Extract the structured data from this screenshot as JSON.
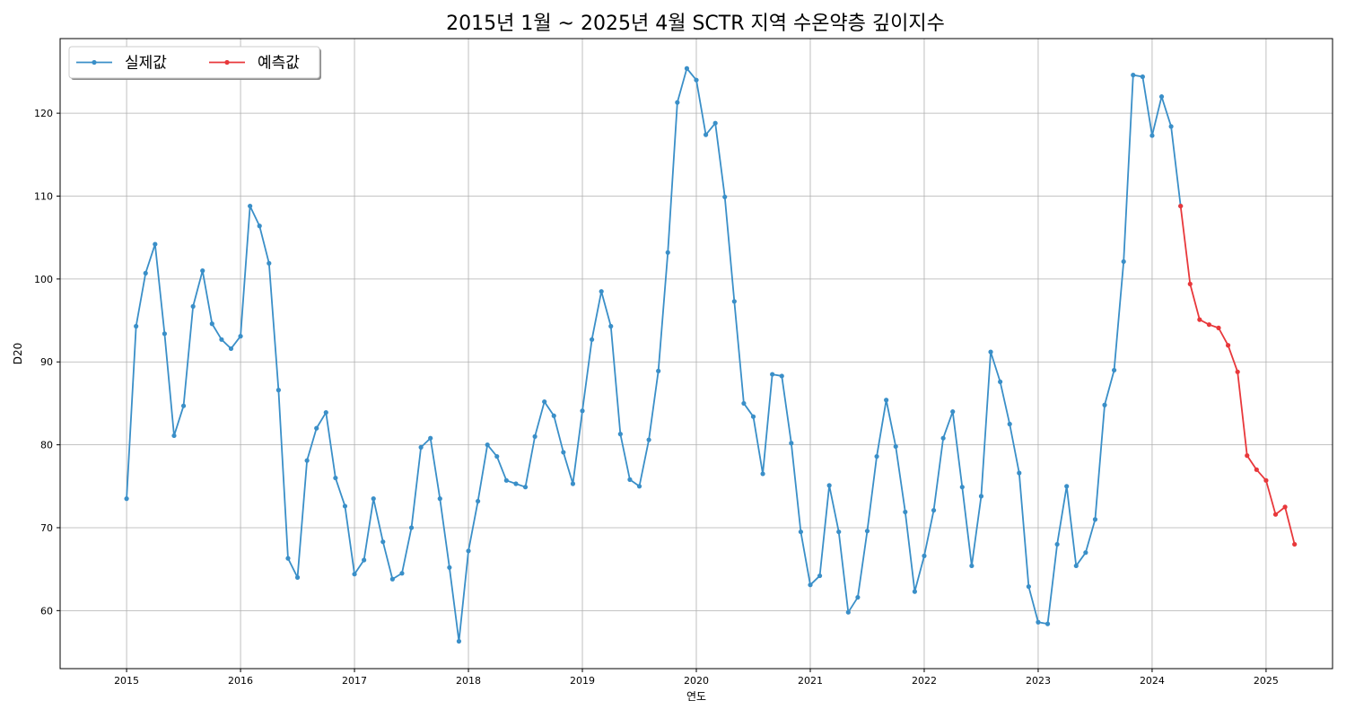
{
  "chart_data": {
    "type": "line",
    "title": "2015년 1월 ~ 2025년 4월 SCTR 지역 수온약층 깊이지수",
    "xlabel": "연도",
    "ylabel": "D20",
    "xlim": [
      "2014-06",
      "2025-08"
    ],
    "ylim": [
      53,
      129
    ],
    "x_ticks": [
      "2015",
      "2016",
      "2017",
      "2018",
      "2019",
      "2020",
      "2021",
      "2022",
      "2023",
      "2024",
      "2025"
    ],
    "y_ticks": [
      60,
      70,
      80,
      90,
      100,
      110,
      120
    ],
    "grid": true,
    "legend": {
      "position": "top-left",
      "columns": 2
    },
    "series": [
      {
        "name": "실제값",
        "color": "#3a8fc8",
        "start": "2015-01",
        "values": [
          73.5,
          94.3,
          100.7,
          104.2,
          93.4,
          81.1,
          84.7,
          96.7,
          101.0,
          94.6,
          92.7,
          91.6,
          93.1,
          108.8,
          106.4,
          101.9,
          86.6,
          66.3,
          64.0,
          78.1,
          82.0,
          83.9,
          76.0,
          72.6,
          64.4,
          66.1,
          73.5,
          68.3,
          63.8,
          64.5,
          70.0,
          79.7,
          80.8,
          73.5,
          65.2,
          56.3,
          67.2,
          73.2,
          80.0,
          78.6,
          75.7,
          75.3,
          74.9,
          81.0,
          85.2,
          83.5,
          79.1,
          75.3,
          84.1,
          92.7,
          98.5,
          94.3,
          81.3,
          75.8,
          75.0,
          80.6,
          88.9,
          103.2,
          121.3,
          125.4,
          124.0,
          117.4,
          118.8,
          109.9,
          97.3,
          85.0,
          83.4,
          76.5,
          88.5,
          88.3,
          80.2,
          69.5,
          63.1,
          64.2,
          75.1,
          69.5,
          59.8,
          61.6,
          69.6,
          78.6,
          85.4,
          79.8,
          71.9,
          62.3,
          66.6,
          72.1,
          80.8,
          84.0,
          74.9,
          65.4,
          73.8,
          91.2,
          87.6,
          82.5,
          76.6,
          62.9,
          58.6,
          58.4,
          68.0,
          75.0,
          65.4,
          67.0,
          71.0,
          84.8,
          89.0,
          102.1,
          124.6,
          124.4,
          117.3,
          122.0,
          118.4,
          108.8
        ]
      },
      {
        "name": "예측값",
        "color": "#e8383b",
        "start": "2024-04",
        "values": [
          108.8,
          99.4,
          95.1,
          94.5,
          94.1,
          92.0,
          88.8,
          78.7,
          77.0,
          75.7,
          71.6,
          72.5,
          68.0
        ]
      }
    ]
  }
}
